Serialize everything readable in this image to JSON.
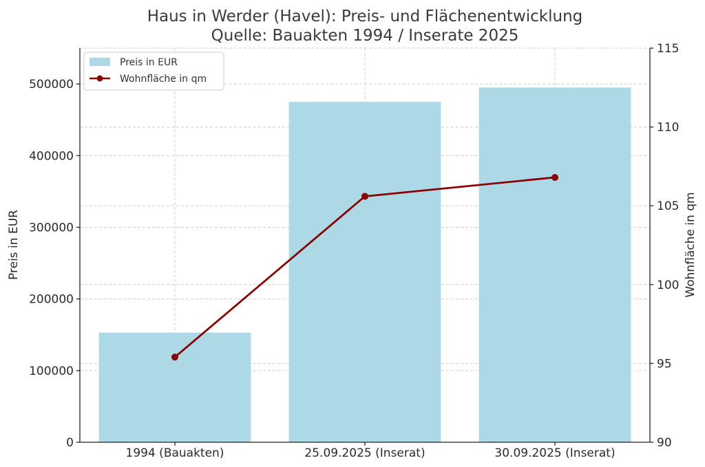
{
  "chart_data": {
    "type": "bar",
    "title": "Haus in Werder (Havel): Preis- und Flächenentwicklung",
    "subtitle": "Quelle: Bauakten 1994 / Inserate 2025",
    "categories": [
      "1994 (Bauakten)",
      "25.09.2025 (Inserat)",
      "30.09.2025 (Inserat)"
    ],
    "series": [
      {
        "name": "Preis in EUR",
        "type": "bar",
        "axis": "left",
        "color": "#add8e6",
        "values": [
          153000,
          475000,
          495000
        ]
      },
      {
        "name": "Wohnfläche in qm",
        "type": "line",
        "axis": "right",
        "color": "#8b0000",
        "values": [
          95.4,
          105.6,
          106.8
        ]
      }
    ],
    "ylabel": "Preis in EUR",
    "y2label": "Wohnfläche in qm",
    "ylim": [
      0,
      550000
    ],
    "y2lim": [
      90,
      115
    ],
    "yticks": [
      "0",
      "100000",
      "200000",
      "300000",
      "400000",
      "500000"
    ],
    "y2ticks": [
      "90",
      "95",
      "100",
      "105",
      "110",
      "115"
    ],
    "grid": true,
    "legend": "top-left"
  }
}
